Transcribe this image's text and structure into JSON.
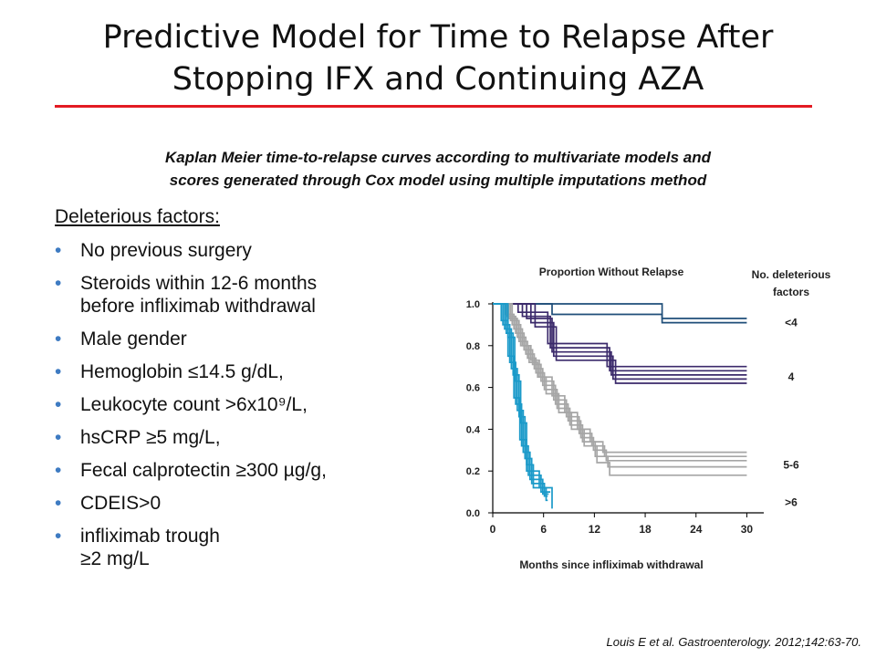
{
  "slide": {
    "title_lines": [
      "Predictive Model for Time to Relapse After",
      "Stopping IFX and Continuing AZA"
    ],
    "subtitle_lines": [
      "Kaplan Meier time-to-relapse curves according to multivariate models and",
      "scores generated through Cox model using multiple imputations method"
    ],
    "factors_heading": "Deleterious factors:",
    "factors": [
      [
        "No previous surgery"
      ],
      [
        "Steroids within 12-6 months",
        "before infliximab withdrawal"
      ],
      [
        "Male gender"
      ],
      [
        "Hemoglobin ≤14.5 g/dL,"
      ],
      [
        "Leukocyte count >6x10⁹/L,"
      ],
      [
        "hsCRP ≥5 mg/L,"
      ],
      [
        "Fecal calprotectin ≥300 µg/g,"
      ],
      [
        "CDEIS>0"
      ],
      [
        "infliximab trough",
        "≥2 mg/L"
      ]
    ],
    "citation": "Louis E et al. Gastroenterology. 2012;142:63-70.",
    "rule_color": "#e31b23"
  },
  "chart_data": {
    "type": "line",
    "step": true,
    "title": "Proportion Without Relapse",
    "xlabel": "Months since infliximab withdrawal",
    "ylabel": "",
    "xlim": [
      0,
      32
    ],
    "ylim": [
      0,
      1
    ],
    "x_ticks": [
      "0",
      "6",
      "12",
      "18",
      "24",
      "30"
    ],
    "y_ticks": [
      "0.0",
      "0.2",
      "0.4",
      "0.6",
      "0.8",
      "1.0"
    ],
    "legend_title": [
      "No. deleterious",
      "factors"
    ],
    "groups": [
      {
        "label": "<4",
        "color": "#1f4e79",
        "label_y": 0.91
      },
      {
        "label": "4",
        "color": "#3b2a6b",
        "label_y": 0.65
      },
      {
        "label": "5-6",
        "color": "#a6a6a6",
        "label_y": 0.23
      },
      {
        "label": ">6",
        "color": "#1b9ac9",
        "label_y": 0.05
      }
    ],
    "series": [
      {
        "group": 0,
        "points": [
          [
            0,
            1
          ],
          [
            7,
            1
          ],
          [
            7,
            0.95
          ],
          [
            20,
            0.95
          ],
          [
            20,
            0.93
          ],
          [
            30,
            0.93
          ]
        ]
      },
      {
        "group": 0,
        "points": [
          [
            0,
            1
          ],
          [
            20,
            1
          ],
          [
            20,
            0.91
          ],
          [
            30,
            0.91
          ]
        ]
      },
      {
        "group": 1,
        "points": [
          [
            0,
            1
          ],
          [
            3,
            1
          ],
          [
            3,
            0.96
          ],
          [
            6.5,
            0.96
          ],
          [
            6.5,
            0.81
          ],
          [
            13.5,
            0.81
          ],
          [
            13.5,
            0.7
          ],
          [
            30,
            0.7
          ]
        ]
      },
      {
        "group": 1,
        "points": [
          [
            0,
            1
          ],
          [
            3.5,
            1
          ],
          [
            3.5,
            0.94
          ],
          [
            6.8,
            0.94
          ],
          [
            6.8,
            0.79
          ],
          [
            13.8,
            0.79
          ],
          [
            13.8,
            0.68
          ],
          [
            30,
            0.68
          ]
        ]
      },
      {
        "group": 1,
        "points": [
          [
            0,
            1
          ],
          [
            4,
            1
          ],
          [
            4,
            0.93
          ],
          [
            7,
            0.93
          ],
          [
            7,
            0.77
          ],
          [
            14,
            0.77
          ],
          [
            14,
            0.66
          ],
          [
            30,
            0.66
          ]
        ]
      },
      {
        "group": 1,
        "points": [
          [
            0,
            1
          ],
          [
            4.5,
            1
          ],
          [
            4.5,
            0.91
          ],
          [
            7.2,
            0.91
          ],
          [
            7.2,
            0.75
          ],
          [
            14.2,
            0.75
          ],
          [
            14.2,
            0.64
          ],
          [
            30,
            0.64
          ]
        ]
      },
      {
        "group": 1,
        "points": [
          [
            0,
            1
          ],
          [
            5,
            1
          ],
          [
            5,
            0.89
          ],
          [
            7.5,
            0.89
          ],
          [
            7.5,
            0.73
          ],
          [
            14.5,
            0.73
          ],
          [
            14.5,
            0.62
          ],
          [
            30,
            0.62
          ]
        ]
      },
      {
        "group": 2,
        "points": [
          [
            0,
            1
          ],
          [
            1.5,
            1
          ],
          [
            1.5,
            0.95
          ],
          [
            2.5,
            0.95
          ],
          [
            2.5,
            0.88
          ],
          [
            3.5,
            0.88
          ],
          [
            3.5,
            0.8
          ],
          [
            4.5,
            0.8
          ],
          [
            4.5,
            0.73
          ],
          [
            5.5,
            0.73
          ],
          [
            5.5,
            0.65
          ],
          [
            7,
            0.65
          ],
          [
            7,
            0.56
          ],
          [
            8.5,
            0.56
          ],
          [
            8.5,
            0.48
          ],
          [
            10,
            0.48
          ],
          [
            10,
            0.4
          ],
          [
            11.5,
            0.4
          ],
          [
            11.5,
            0.34
          ],
          [
            13,
            0.34
          ],
          [
            13,
            0.29
          ],
          [
            30,
            0.29
          ]
        ]
      },
      {
        "group": 2,
        "points": [
          [
            0,
            1
          ],
          [
            1.7,
            1
          ],
          [
            1.7,
            0.94
          ],
          [
            2.7,
            0.94
          ],
          [
            2.7,
            0.86
          ],
          [
            3.7,
            0.86
          ],
          [
            3.7,
            0.78
          ],
          [
            4.7,
            0.78
          ],
          [
            4.7,
            0.71
          ],
          [
            5.7,
            0.71
          ],
          [
            5.7,
            0.63
          ],
          [
            7.2,
            0.63
          ],
          [
            7.2,
            0.54
          ],
          [
            8.7,
            0.54
          ],
          [
            8.7,
            0.46
          ],
          [
            10.2,
            0.46
          ],
          [
            10.2,
            0.38
          ],
          [
            11.7,
            0.38
          ],
          [
            11.7,
            0.32
          ],
          [
            13.2,
            0.32
          ],
          [
            13.2,
            0.27
          ],
          [
            30,
            0.27
          ]
        ]
      },
      {
        "group": 2,
        "points": [
          [
            0,
            1
          ],
          [
            1.9,
            1
          ],
          [
            1.9,
            0.93
          ],
          [
            2.9,
            0.93
          ],
          [
            2.9,
            0.84
          ],
          [
            3.9,
            0.84
          ],
          [
            3.9,
            0.76
          ],
          [
            4.9,
            0.76
          ],
          [
            4.9,
            0.69
          ],
          [
            5.9,
            0.69
          ],
          [
            5.9,
            0.61
          ],
          [
            7.4,
            0.61
          ],
          [
            7.4,
            0.52
          ],
          [
            8.9,
            0.52
          ],
          [
            8.9,
            0.44
          ],
          [
            10.4,
            0.44
          ],
          [
            10.4,
            0.36
          ],
          [
            11.9,
            0.36
          ],
          [
            11.9,
            0.3
          ],
          [
            13.4,
            0.3
          ],
          [
            13.4,
            0.25
          ],
          [
            30,
            0.25
          ]
        ]
      },
      {
        "group": 2,
        "points": [
          [
            0,
            1
          ],
          [
            2.1,
            1
          ],
          [
            2.1,
            0.92
          ],
          [
            3.1,
            0.92
          ],
          [
            3.1,
            0.82
          ],
          [
            4.1,
            0.82
          ],
          [
            4.1,
            0.74
          ],
          [
            5.1,
            0.74
          ],
          [
            5.1,
            0.67
          ],
          [
            6.1,
            0.67
          ],
          [
            6.1,
            0.59
          ],
          [
            7.6,
            0.59
          ],
          [
            7.6,
            0.5
          ],
          [
            9.1,
            0.5
          ],
          [
            9.1,
            0.42
          ],
          [
            10.6,
            0.42
          ],
          [
            10.6,
            0.34
          ],
          [
            12.1,
            0.34
          ],
          [
            12.1,
            0.27
          ],
          [
            13.6,
            0.27
          ],
          [
            13.6,
            0.22
          ],
          [
            30,
            0.22
          ]
        ]
      },
      {
        "group": 2,
        "points": [
          [
            0,
            1
          ],
          [
            2.3,
            1
          ],
          [
            2.3,
            0.9
          ],
          [
            3.3,
            0.9
          ],
          [
            3.3,
            0.8
          ],
          [
            4.3,
            0.8
          ],
          [
            4.3,
            0.72
          ],
          [
            5.3,
            0.72
          ],
          [
            5.3,
            0.65
          ],
          [
            6.3,
            0.65
          ],
          [
            6.3,
            0.57
          ],
          [
            7.8,
            0.57
          ],
          [
            7.8,
            0.48
          ],
          [
            9.3,
            0.48
          ],
          [
            9.3,
            0.4
          ],
          [
            10.8,
            0.4
          ],
          [
            10.8,
            0.32
          ],
          [
            12.3,
            0.32
          ],
          [
            12.3,
            0.24
          ],
          [
            13.8,
            0.24
          ],
          [
            13.8,
            0.18
          ],
          [
            30,
            0.18
          ]
        ]
      },
      {
        "group": 3,
        "points": [
          [
            0,
            1
          ],
          [
            1,
            1
          ],
          [
            1,
            0.92
          ],
          [
            1.8,
            0.92
          ],
          [
            1.8,
            0.75
          ],
          [
            2.5,
            0.75
          ],
          [
            2.5,
            0.55
          ],
          [
            3.2,
            0.55
          ],
          [
            3.2,
            0.35
          ],
          [
            4,
            0.35
          ],
          [
            4,
            0.2
          ],
          [
            5.5,
            0.2
          ],
          [
            5.5,
            0.12
          ],
          [
            7,
            0.12
          ],
          [
            7,
            0.02
          ]
        ]
      },
      {
        "group": 3,
        "points": [
          [
            0,
            1
          ],
          [
            1.2,
            1
          ],
          [
            1.2,
            0.9
          ],
          [
            2,
            0.9
          ],
          [
            2,
            0.72
          ],
          [
            2.7,
            0.72
          ],
          [
            2.7,
            0.52
          ],
          [
            3.4,
            0.52
          ],
          [
            3.4,
            0.32
          ],
          [
            4.2,
            0.32
          ],
          [
            4.2,
            0.18
          ],
          [
            5.7,
            0.18
          ],
          [
            5.7,
            0.1
          ],
          [
            6.8,
            0.1
          ]
        ]
      },
      {
        "group": 3,
        "points": [
          [
            0,
            1
          ],
          [
            1.4,
            1
          ],
          [
            1.4,
            0.88
          ],
          [
            2.2,
            0.88
          ],
          [
            2.2,
            0.69
          ],
          [
            2.9,
            0.69
          ],
          [
            2.9,
            0.49
          ],
          [
            3.6,
            0.49
          ],
          [
            3.6,
            0.29
          ],
          [
            4.4,
            0.29
          ],
          [
            4.4,
            0.16
          ],
          [
            5.9,
            0.16
          ],
          [
            5.9,
            0.09
          ],
          [
            6.6,
            0.09
          ]
        ]
      },
      {
        "group": 3,
        "points": [
          [
            0,
            1
          ],
          [
            1.6,
            1
          ],
          [
            1.6,
            0.86
          ],
          [
            2.4,
            0.86
          ],
          [
            2.4,
            0.66
          ],
          [
            3.1,
            0.66
          ],
          [
            3.1,
            0.46
          ],
          [
            3.8,
            0.46
          ],
          [
            3.8,
            0.26
          ],
          [
            4.6,
            0.26
          ],
          [
            4.6,
            0.14
          ],
          [
            6.1,
            0.14
          ],
          [
            6.1,
            0.08
          ],
          [
            6.5,
            0.08
          ]
        ]
      },
      {
        "group": 3,
        "points": [
          [
            0,
            1
          ],
          [
            1.8,
            1
          ],
          [
            1.8,
            0.84
          ],
          [
            2.6,
            0.84
          ],
          [
            2.6,
            0.63
          ],
          [
            3.3,
            0.63
          ],
          [
            3.3,
            0.43
          ],
          [
            4,
            0.43
          ],
          [
            4,
            0.23
          ],
          [
            4.8,
            0.23
          ],
          [
            4.8,
            0.12
          ],
          [
            6.3,
            0.12
          ],
          [
            6.3,
            0.06
          ],
          [
            6.5,
            0.06
          ]
        ]
      }
    ]
  }
}
